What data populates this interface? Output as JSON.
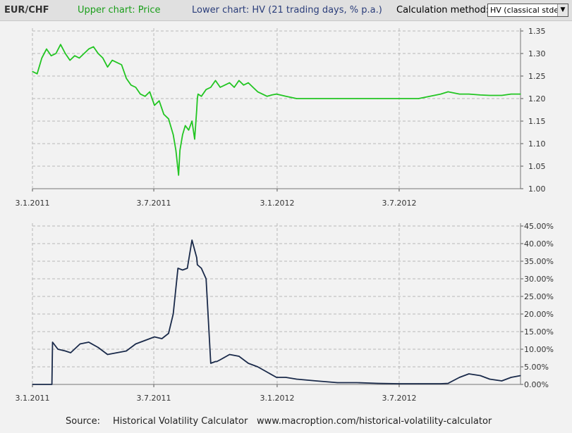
{
  "header": {
    "title": "EUR/CHF",
    "upper_label": "Upper chart: Price",
    "lower_label": "Lower chart: HV (21 trading days, % p.a.)",
    "method_label": "Calculation method:",
    "method_value": "HV (classical stdev)",
    "colors": {
      "upper": "#1a9e1a",
      "lower": "#2a3d7a",
      "title": "#333333"
    }
  },
  "footer": {
    "source_label": "Source:",
    "source_name": "Historical Volatility Calculator",
    "source_url": "www.macroption.com/historical-volatility-calculator"
  },
  "chart_data": [
    {
      "type": "line",
      "title": "Price",
      "x_ticks": [
        "3.1.2011",
        "3.7.2011",
        "3.1.2012",
        "3.7.2012"
      ],
      "x_tick_dates": [
        "2011-01-03",
        "2011-07-03",
        "2012-01-03",
        "2012-07-03"
      ],
      "x_range": [
        "2011-01-03",
        "2012-12-31"
      ],
      "ylim": [
        1.0,
        1.35
      ],
      "y_ticks": [
        "1.00",
        "1.05",
        "1.10",
        "1.15",
        "1.20",
        "1.25",
        "1.30",
        "1.35"
      ],
      "y_tick_values": [
        1.0,
        1.05,
        1.1,
        1.15,
        1.2,
        1.25,
        1.3,
        1.35
      ],
      "grid": true,
      "color": "#22c522",
      "series": [
        {
          "x": [
            "2011-01-03",
            "2011-01-10",
            "2011-01-17",
            "2011-01-24",
            "2011-01-31",
            "2011-02-07",
            "2011-02-14",
            "2011-02-21",
            "2011-02-28",
            "2011-03-07",
            "2011-03-14",
            "2011-03-21",
            "2011-03-28",
            "2011-04-04",
            "2011-04-11",
            "2011-04-18",
            "2011-04-25",
            "2011-05-02",
            "2011-05-09",
            "2011-05-16",
            "2011-05-23",
            "2011-05-30",
            "2011-06-06",
            "2011-06-13",
            "2011-06-20",
            "2011-06-27",
            "2011-07-04",
            "2011-07-11",
            "2011-07-18",
            "2011-07-25",
            "2011-08-01",
            "2011-08-05",
            "2011-08-09",
            "2011-08-11",
            "2011-08-15",
            "2011-08-19",
            "2011-08-24",
            "2011-08-29",
            "2011-09-02",
            "2011-09-05",
            "2011-09-06",
            "2011-09-07",
            "2011-09-12",
            "2011-09-19",
            "2011-09-26",
            "2011-10-03",
            "2011-10-10",
            "2011-10-17",
            "2011-10-24",
            "2011-10-31",
            "2011-11-07",
            "2011-11-14",
            "2011-11-21",
            "2011-11-28",
            "2011-12-05",
            "2011-12-12",
            "2011-12-19",
            "2011-12-26",
            "2012-01-02",
            "2012-01-16",
            "2012-02-01",
            "2012-03-01",
            "2012-04-02",
            "2012-05-01",
            "2012-06-01",
            "2012-07-02",
            "2012-08-01",
            "2012-09-03",
            "2012-09-14",
            "2012-10-01",
            "2012-10-15",
            "2012-11-01",
            "2012-11-15",
            "2012-12-03",
            "2012-12-17",
            "2012-12-31"
          ],
          "values": [
            1.26,
            1.255,
            1.29,
            1.31,
            1.295,
            1.3,
            1.32,
            1.3,
            1.285,
            1.295,
            1.29,
            1.3,
            1.31,
            1.315,
            1.3,
            1.29,
            1.27,
            1.285,
            1.28,
            1.275,
            1.245,
            1.23,
            1.225,
            1.21,
            1.205,
            1.215,
            1.185,
            1.195,
            1.165,
            1.155,
            1.12,
            1.085,
            1.03,
            1.085,
            1.12,
            1.14,
            1.13,
            1.15,
            1.11,
            1.175,
            1.2,
            1.21,
            1.205,
            1.22,
            1.225,
            1.24,
            1.225,
            1.23,
            1.235,
            1.225,
            1.24,
            1.23,
            1.235,
            1.225,
            1.215,
            1.21,
            1.205,
            1.208,
            1.21,
            1.205,
            1.2,
            1.2,
            1.2,
            1.2,
            1.2,
            1.2,
            1.2,
            1.21,
            1.215,
            1.21,
            1.21,
            1.208,
            1.207,
            1.207,
            1.21,
            1.21
          ]
        }
      ]
    },
    {
      "type": "line",
      "title": "HV",
      "x_ticks": [
        "3.1.2011",
        "3.7.2011",
        "3.1.2012",
        "3.7.2012"
      ],
      "x_tick_dates": [
        "2011-01-03",
        "2011-07-03",
        "2012-01-03",
        "2012-07-03"
      ],
      "x_range": [
        "2011-01-03",
        "2012-12-31"
      ],
      "ylim": [
        0,
        0.45
      ],
      "y_ticks": [
        "0.00%",
        "5.00%",
        "10.00%",
        "15.00%",
        "20.00%",
        "25.00%",
        "30.00%",
        "35.00%",
        "40.00%",
        "45.00%"
      ],
      "y_tick_values": [
        0,
        0.05,
        0.1,
        0.15,
        0.2,
        0.25,
        0.3,
        0.35,
        0.4,
        0.45
      ],
      "grid": true,
      "color": "#1a2a4a",
      "series": [
        {
          "x": [
            "2011-01-03",
            "2011-02-01",
            "2011-02-02",
            "2011-02-10",
            "2011-02-21",
            "2011-03-01",
            "2011-03-15",
            "2011-03-28",
            "2011-04-11",
            "2011-04-25",
            "2011-05-09",
            "2011-05-23",
            "2011-06-06",
            "2011-06-20",
            "2011-07-04",
            "2011-07-15",
            "2011-07-25",
            "2011-08-01",
            "2011-08-08",
            "2011-08-15",
            "2011-08-22",
            "2011-08-29",
            "2011-09-05",
            "2011-09-06",
            "2011-09-12",
            "2011-09-19",
            "2011-09-26",
            "2011-10-03",
            "2011-10-05",
            "2011-10-10",
            "2011-10-24",
            "2011-11-07",
            "2011-11-21",
            "2011-12-05",
            "2011-12-19",
            "2012-01-02",
            "2012-01-16",
            "2012-02-01",
            "2012-03-01",
            "2012-04-02",
            "2012-05-01",
            "2012-06-01",
            "2012-07-02",
            "2012-08-01",
            "2012-09-03",
            "2012-09-14",
            "2012-10-01",
            "2012-10-15",
            "2012-11-01",
            "2012-11-15",
            "2012-12-03",
            "2012-12-17",
            "2012-12-31"
          ],
          "values": [
            0,
            0,
            0.12,
            0.1,
            0.095,
            0.09,
            0.115,
            0.12,
            0.105,
            0.085,
            0.09,
            0.095,
            0.115,
            0.125,
            0.135,
            0.13,
            0.145,
            0.2,
            0.33,
            0.325,
            0.33,
            0.41,
            0.36,
            0.34,
            0.33,
            0.3,
            0.06,
            0.065,
            0.065,
            0.07,
            0.085,
            0.08,
            0.06,
            0.05,
            0.035,
            0.02,
            0.02,
            0.015,
            0.01,
            0.005,
            0.005,
            0.003,
            0.002,
            0.002,
            0.002,
            0.003,
            0.02,
            0.03,
            0.025,
            0.015,
            0.01,
            0.02,
            0.025
          ]
        }
      ]
    }
  ]
}
